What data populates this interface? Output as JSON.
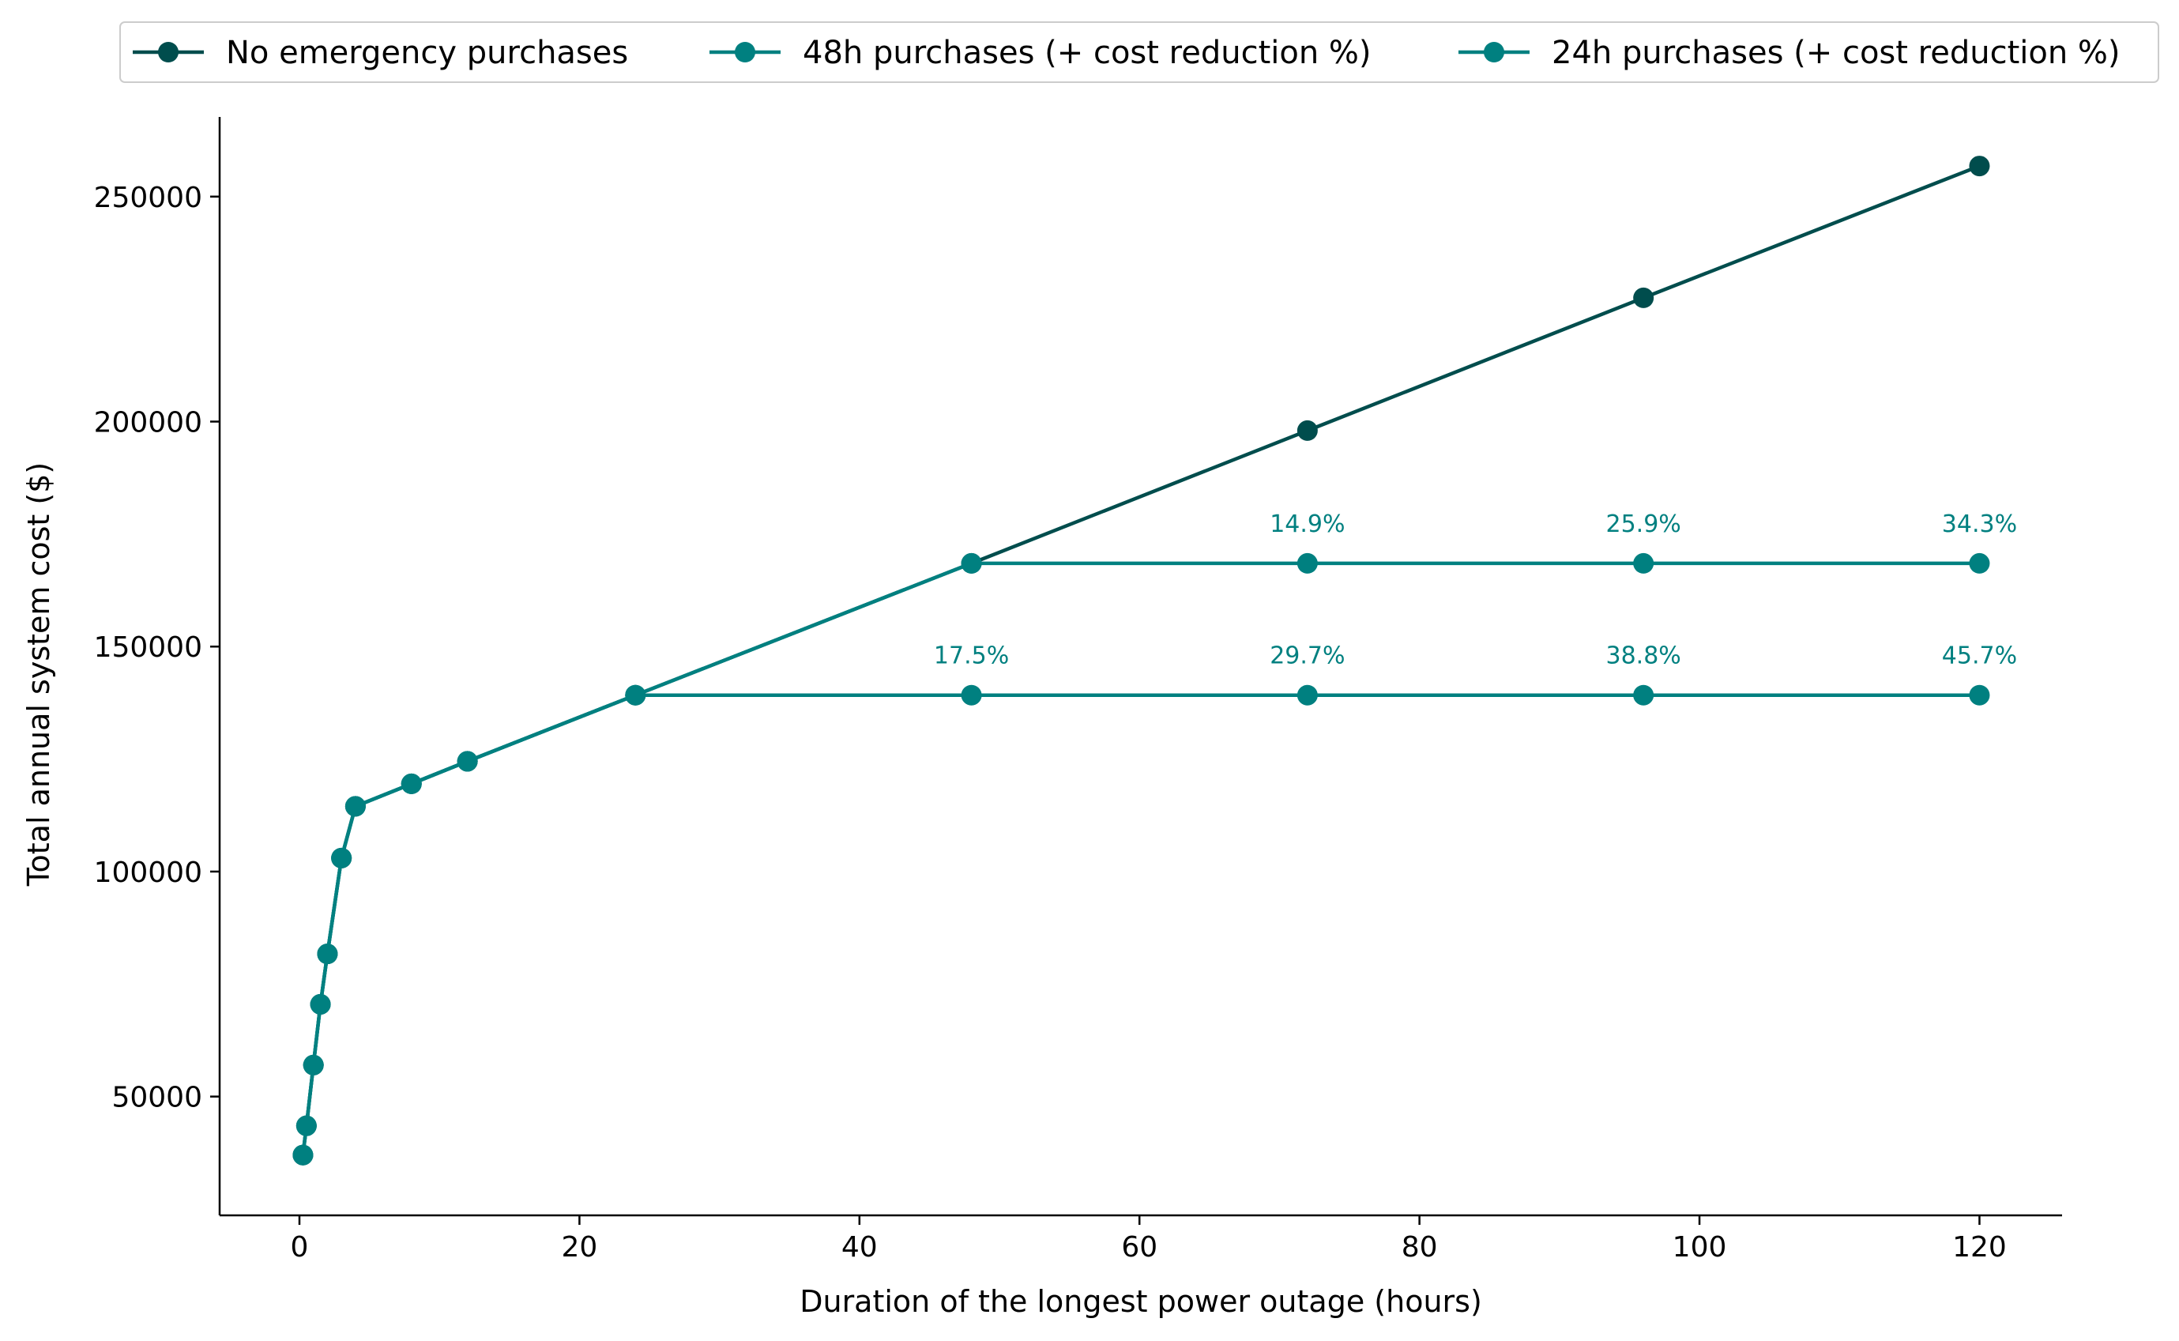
{
  "chart_data": {
    "type": "line",
    "title": "",
    "xlabel": "Duration of the longest power outage (hours)",
    "ylabel": "Total annual system cost ($)",
    "xlim": [
      -5.7,
      125.9
    ],
    "ylim": [
      23600,
      267700
    ],
    "xticks": [
      0,
      20,
      40,
      60,
      80,
      100,
      120
    ],
    "yticks": [
      50000,
      100000,
      150000,
      200000,
      250000
    ],
    "grid": false,
    "legend_position": "top-center",
    "colors": {
      "no_emergency": "#004d4d",
      "purchase": "#008080",
      "axis": "#000000"
    },
    "series": [
      {
        "key": "no_emergency",
        "name": "No emergency purchases",
        "color": "#004d4d",
        "x": [
          0.25,
          0.5,
          1,
          1.5,
          2,
          3,
          4,
          8,
          12,
          24,
          48,
          72,
          96,
          120
        ],
        "y": [
          37000,
          43500,
          57000,
          70500,
          81700,
          103000,
          114500,
          119500,
          124500,
          139200,
          168500,
          198000,
          227500,
          256800
        ],
        "labels": []
      },
      {
        "key": "purchase_48h",
        "name": "48h purchases (+ cost reduction %)",
        "color": "#008080",
        "x": [
          0.25,
          0.5,
          1,
          1.5,
          2,
          3,
          4,
          8,
          12,
          24,
          48,
          72,
          96,
          120
        ],
        "y": [
          37000,
          43500,
          57000,
          70500,
          81700,
          103000,
          114500,
          119500,
          124500,
          139200,
          168500,
          168500,
          168500,
          168500
        ],
        "labels": [
          {
            "x": 72,
            "y": 168500,
            "text": "14.9%"
          },
          {
            "x": 96,
            "y": 168500,
            "text": "25.9%"
          },
          {
            "x": 120,
            "y": 168500,
            "text": "34.3%"
          }
        ]
      },
      {
        "key": "purchase_24h",
        "name": "24h purchases (+ cost reduction %)",
        "color": "#008080",
        "x": [
          0.25,
          0.5,
          1,
          1.5,
          2,
          3,
          4,
          8,
          12,
          24,
          48,
          72,
          96,
          120
        ],
        "y": [
          37000,
          43500,
          57000,
          70500,
          81700,
          103000,
          114500,
          119500,
          124500,
          139200,
          139200,
          139200,
          139200,
          139200
        ],
        "labels": [
          {
            "x": 48,
            "y": 139200,
            "text": "17.5%"
          },
          {
            "x": 72,
            "y": 139200,
            "text": "29.7%"
          },
          {
            "x": 96,
            "y": 139200,
            "text": "38.8%"
          },
          {
            "x": 120,
            "y": 139200,
            "text": "45.7%"
          }
        ]
      }
    ]
  }
}
